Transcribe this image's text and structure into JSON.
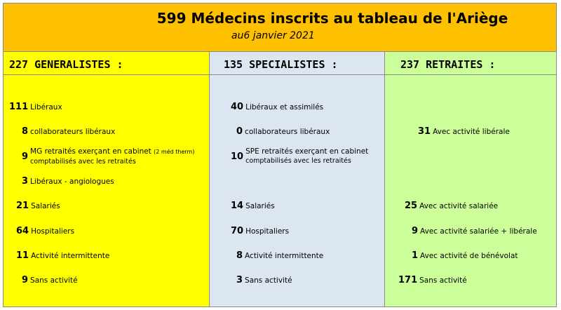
{
  "header": {
    "title": "599  Médecins inscrits au tableau de l'Ariège",
    "subtitle": "au6 janvier 2021"
  },
  "generalistes": {
    "heading": "227 GENERALISTES :",
    "liberaux": {
      "num": "111",
      "label": "Libéraux"
    },
    "collab": {
      "num": "8",
      "label": "collaborateurs libéraux"
    },
    "mg_retraites": {
      "num": "9",
      "label": "MG retraités exerçant en cabinet",
      "note": "(2 méd therm)",
      "label2": "comptabilisés avec les retraités"
    },
    "angio": {
      "num": "3",
      "label": "Libéraux - angiologues"
    },
    "salaries": {
      "num": "21",
      "label": "Salariés"
    },
    "hospitaliers": {
      "num": "64",
      "label": "Hospitaliers"
    },
    "intermittente": {
      "num": "11",
      "label": "Activité intermittente"
    },
    "sans": {
      "num": "9",
      "label": "Sans activité"
    }
  },
  "specialistes": {
    "heading": "135 SPECIALISTES :",
    "liberaux": {
      "num": "40",
      "label": "Libéraux et assimilés"
    },
    "collab": {
      "num": "0",
      "label": "collaborateurs libéraux"
    },
    "spe_retraites": {
      "num": "10",
      "label": "SPE retraités exerçant en cabinet",
      "label2": "comptabilisés avec les retraités"
    },
    "salaries": {
      "num": "14",
      "label": "Salariés"
    },
    "hospitaliers": {
      "num": "70",
      "label": "Hospitaliers"
    },
    "intermittente": {
      "num": "8",
      "label": "Activité intermittente"
    },
    "sans": {
      "num": "3",
      "label": "Sans activité"
    }
  },
  "retraites": {
    "heading": "237 RETRAITES :",
    "liberale": {
      "num": "31",
      "label": "Avec activité libérale"
    },
    "salariee": {
      "num": "25",
      "label": "Avec activité salariée"
    },
    "sal_lib": {
      "num": "9",
      "label": "Avec activité salariée + libérale"
    },
    "benevolat": {
      "num": "1",
      "label": "Avec activité de bénévolat"
    },
    "sans": {
      "num": "171",
      "label": "Sans activité"
    }
  }
}
